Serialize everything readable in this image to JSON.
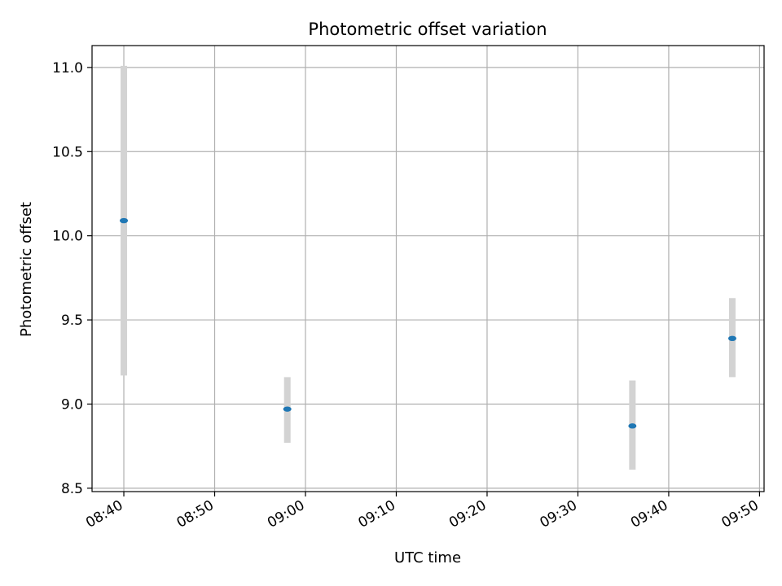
{
  "chart_data": {
    "type": "scatter",
    "title": "Photometric offset variation",
    "xlabel": "UTC time",
    "ylabel": "Photometric offset",
    "xlim": [
      "08:36.5",
      "09:50.5"
    ],
    "ylim": [
      8.48,
      11.13
    ],
    "grid": true,
    "x_ticks": [
      "08:40",
      "08:50",
      "09:00",
      "09:10",
      "09:20",
      "09:30",
      "09:40",
      "09:50"
    ],
    "y_ticks": [
      "8.5",
      "9.0",
      "9.5",
      "10.0",
      "10.5",
      "11.0"
    ],
    "series": [
      {
        "points": [
          {
            "x": "08:40",
            "y": 10.09,
            "yerr_low": 9.17,
            "yerr_high": 11.01
          },
          {
            "x": "08:58",
            "y": 8.97,
            "yerr_low": 8.77,
            "yerr_high": 9.16
          },
          {
            "x": "09:36",
            "y": 8.87,
            "yerr_low": 8.61,
            "yerr_high": 9.14
          },
          {
            "x": "09:47",
            "y": 9.39,
            "yerr_low": 9.16,
            "yerr_high": 9.63
          }
        ]
      }
    ],
    "colors": {
      "point": "#1f77b4",
      "errorbar": "#d3d3d3",
      "grid": "#b0b0b0",
      "axes": "#000000"
    }
  }
}
